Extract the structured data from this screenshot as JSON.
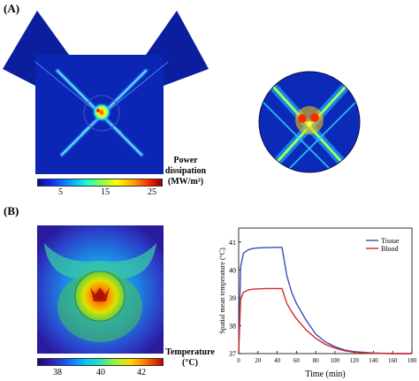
{
  "panel_a": {
    "label": "(A)",
    "colorbar": {
      "title_line1": "Power",
      "title_line2": "dissipation",
      "unit": "(MW/m³)",
      "ticks": [
        "5",
        "15",
        "25"
      ]
    }
  },
  "panel_b": {
    "label": "(B)",
    "colorbar": {
      "title": "Temperature",
      "unit": "(°C)",
      "ticks": [
        "38",
        "40",
        "42"
      ]
    }
  },
  "chart_data": {
    "type": "line",
    "xlabel": "Time (min)",
    "ylabel": "Spatial mean temperature (°C)",
    "xlim": [
      0,
      180
    ],
    "ylim": [
      37,
      41.5
    ],
    "xticks": [
      0,
      20,
      40,
      60,
      80,
      100,
      120,
      140,
      160,
      180
    ],
    "xtick_labels": [
      "0",
      "20",
      "40",
      "60",
      "80",
      "100",
      "120",
      "140",
      "160",
      "180"
    ],
    "yticks": [
      37,
      38,
      39,
      40,
      41
    ],
    "ytick_labels": [
      "37",
      "38",
      "39",
      "40",
      "41"
    ],
    "legend_position": "top-right",
    "series": [
      {
        "name": "Tissue",
        "color": "#3b4cc0",
        "x": [
          0,
          2,
          5,
          10,
          15,
          20,
          30,
          40,
          45,
          50,
          55,
          60,
          70,
          80,
          90,
          100,
          110,
          120,
          140,
          160,
          180
        ],
        "y": [
          37.0,
          40.1,
          40.6,
          40.72,
          40.77,
          40.79,
          40.8,
          40.81,
          40.81,
          39.8,
          39.2,
          38.8,
          38.2,
          37.7,
          37.42,
          37.25,
          37.13,
          37.07,
          37.02,
          37.0,
          37.0
        ]
      },
      {
        "name": "Blood",
        "color": "#d62728",
        "x": [
          0,
          2,
          5,
          10,
          15,
          20,
          30,
          40,
          45,
          50,
          55,
          60,
          70,
          80,
          90,
          100,
          110,
          120,
          140,
          160,
          180
        ],
        "y": [
          37.0,
          38.95,
          39.2,
          39.28,
          39.31,
          39.32,
          39.33,
          39.33,
          39.33,
          38.8,
          38.5,
          38.25,
          37.85,
          37.55,
          37.33,
          37.2,
          37.1,
          37.05,
          37.01,
          37.0,
          37.0
        ]
      }
    ]
  }
}
